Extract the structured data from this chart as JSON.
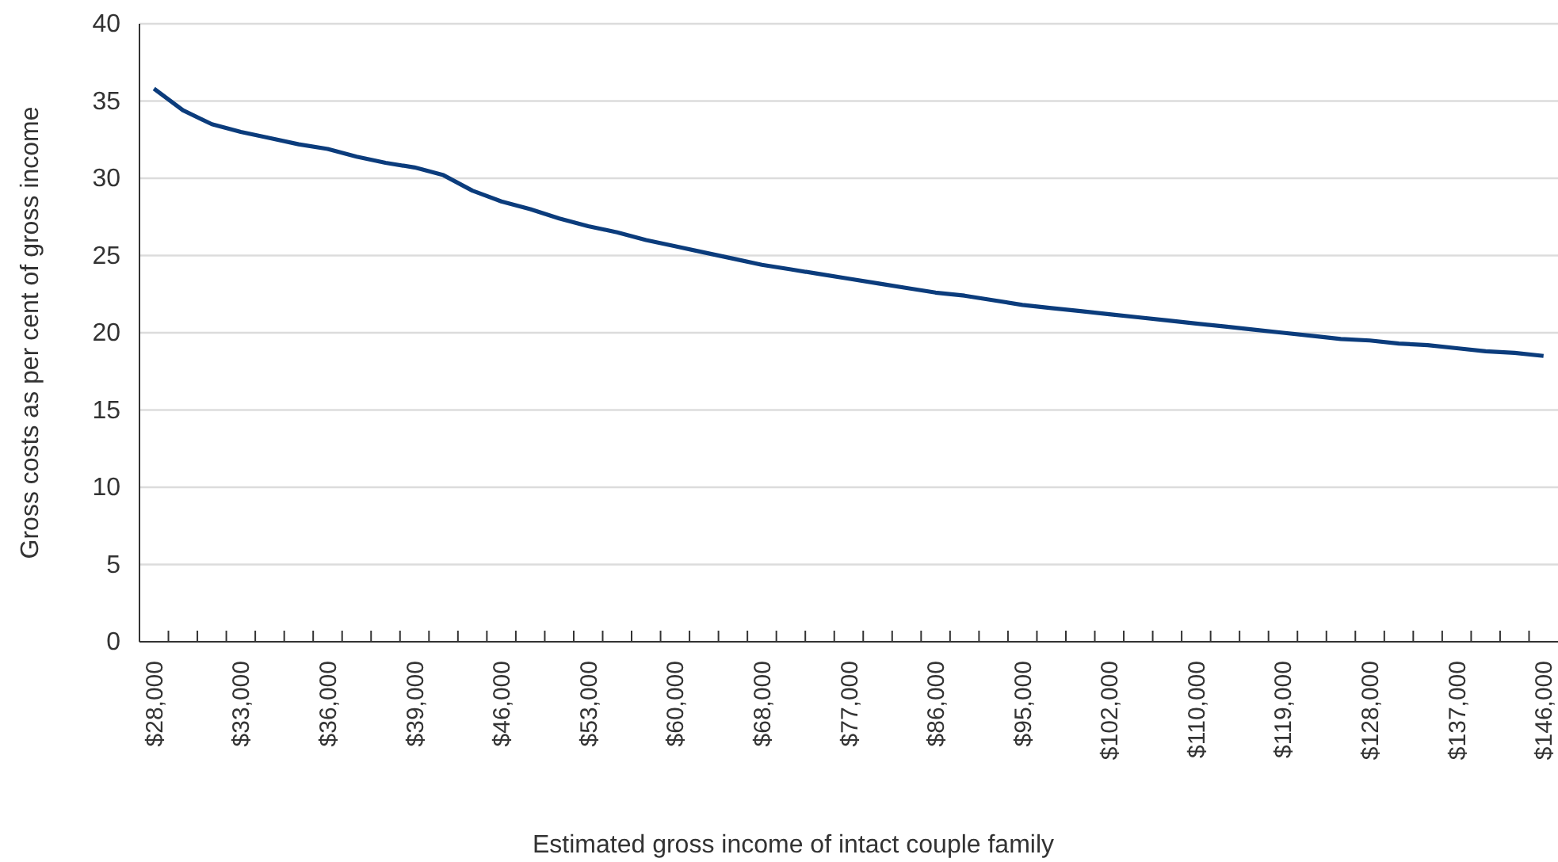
{
  "chart_data": {
    "type": "line",
    "xlabel": "Estimated gross income of intact couple family",
    "ylabel": "Gross costs as per cent of gross income",
    "categories": [
      "$28,000",
      null,
      null,
      "$33,000",
      null,
      null,
      "$36,000",
      null,
      null,
      "$39,000",
      null,
      null,
      "$46,000",
      null,
      null,
      "$53,000",
      null,
      null,
      "$60,000",
      null,
      null,
      "$68,000",
      null,
      null,
      "$77,000",
      null,
      null,
      "$86,000",
      null,
      null,
      "$95,000",
      null,
      null,
      "$102,000",
      null,
      null,
      "$110,000",
      null,
      null,
      "$119,000",
      null,
      null,
      "$128,000",
      null,
      null,
      "$137,000",
      null,
      null,
      "$146,000"
    ],
    "series": [
      {
        "color": "#0b3c7c",
        "values": [
          35.8,
          34.4,
          33.5,
          33.0,
          32.6,
          32.2,
          31.9,
          31.4,
          31.0,
          30.7,
          30.2,
          29.2,
          28.5,
          28.0,
          27.4,
          26.9,
          26.5,
          26.0,
          25.6,
          25.2,
          24.8,
          24.4,
          24.1,
          23.8,
          23.5,
          23.2,
          22.9,
          22.6,
          22.4,
          22.1,
          21.8,
          21.6,
          21.4,
          21.2,
          21.0,
          20.8,
          20.6,
          20.4,
          20.2,
          20.0,
          19.8,
          19.6,
          19.5,
          19.3,
          19.2,
          19.0,
          18.8,
          18.7,
          18.5
        ]
      }
    ],
    "ylim": [
      0,
      40
    ],
    "yticks": [
      0,
      5,
      10,
      15,
      20,
      25,
      30,
      35,
      40
    ],
    "grid": "y",
    "marker": "none",
    "line_style": "solid"
  }
}
